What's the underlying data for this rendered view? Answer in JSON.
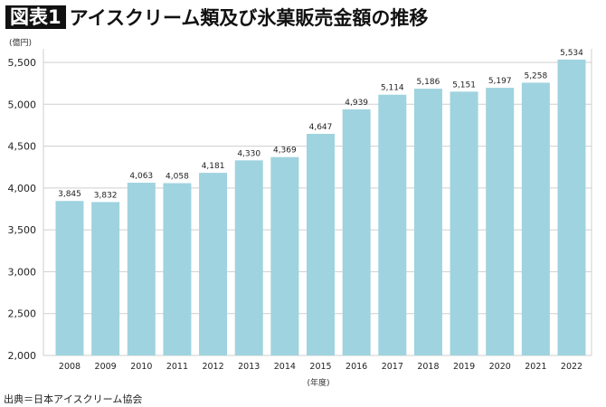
{
  "title_badge": "図表1",
  "title": "アイスクリーム類及び氷菓販売金額の推移",
  "source": "出典＝日本アイスクリーム協会",
  "chart_data": {
    "type": "bar",
    "title": "アイスクリーム類及び氷菓販売金額の推移",
    "xlabel": "(年度)",
    "ylabel": "(億円)",
    "categories": [
      "2008",
      "2009",
      "2010",
      "2011",
      "2012",
      "2013",
      "2014",
      "2015",
      "2016",
      "2017",
      "2018",
      "2019",
      "2020",
      "2021",
      "2022"
    ],
    "values": [
      3845,
      3832,
      4063,
      4058,
      4181,
      4330,
      4369,
      4647,
      4939,
      5114,
      5186,
      5151,
      5197,
      5258,
      5534
    ],
    "data_labels": [
      "3,845",
      "3,832",
      "4,063",
      "4,058",
      "4,181",
      "4,330",
      "4,369",
      "4,647",
      "4,939",
      "5,114",
      "5,186",
      "5,151",
      "5,197",
      "5,258",
      "5,534"
    ],
    "ylim": [
      2000,
      5500
    ],
    "yticks": [
      2000,
      2500,
      3000,
      3500,
      4000,
      4500,
      5000,
      5500
    ],
    "ytick_labels": [
      "2,000",
      "2,500",
      "3,000",
      "3,500",
      "4,000",
      "4,500",
      "5,000",
      "5,500"
    ],
    "grid": true,
    "bar_color": "#9fd3df",
    "grid_color": "#cfcfcf"
  }
}
